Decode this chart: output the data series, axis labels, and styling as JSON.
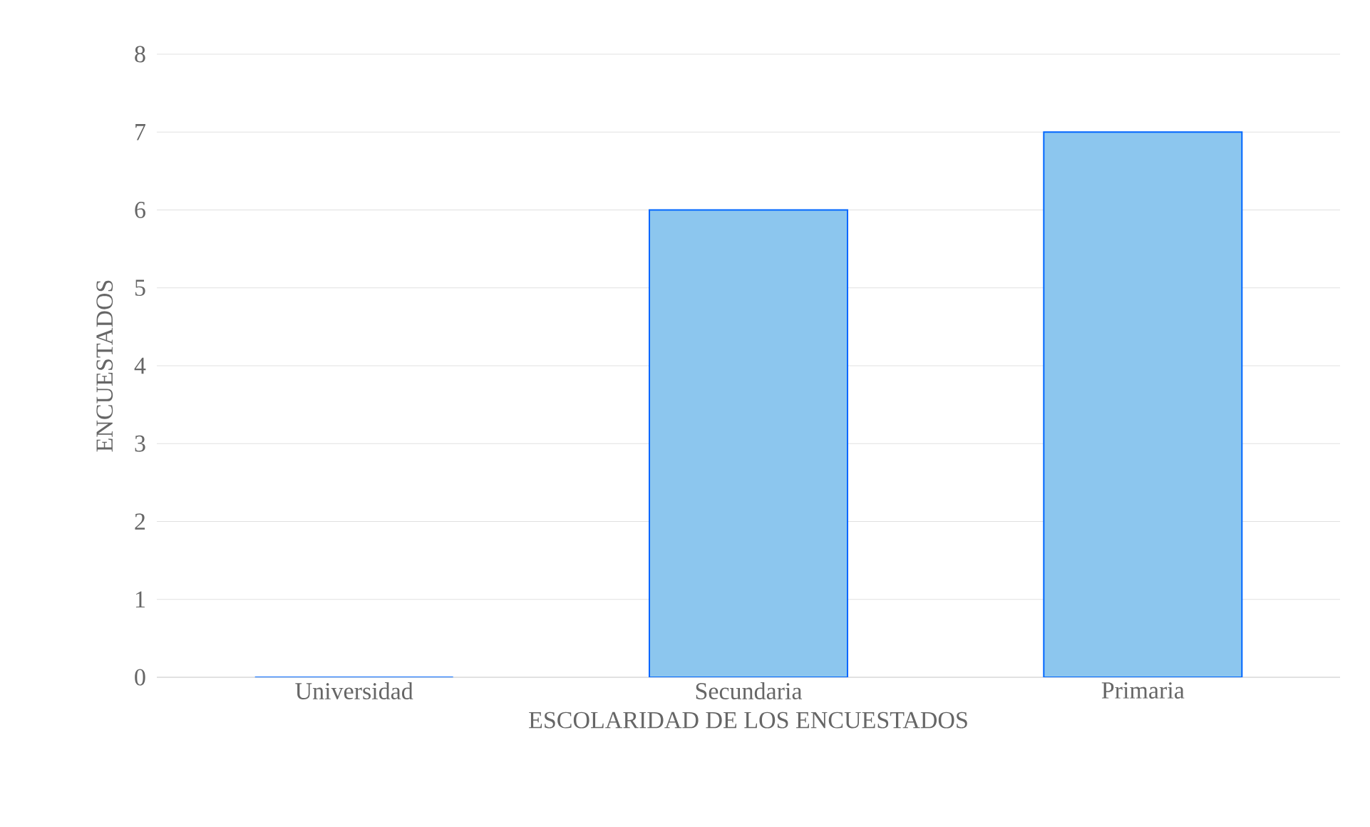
{
  "chart_data": {
    "type": "bar",
    "xlabel": "ESCOLARIDAD DE LOS ENCUESTADOS",
    "ylabel": "ENCUESTADOS",
    "categories": [
      "Universidad",
      "Secundaria",
      "Primaria"
    ],
    "values": [
      0,
      6,
      7
    ],
    "color": "#8cc6ee",
    "ylim": [
      0,
      8
    ],
    "yticks": [
      0,
      1,
      2,
      3,
      4,
      5,
      6,
      7,
      8
    ],
    "grid": "y"
  }
}
